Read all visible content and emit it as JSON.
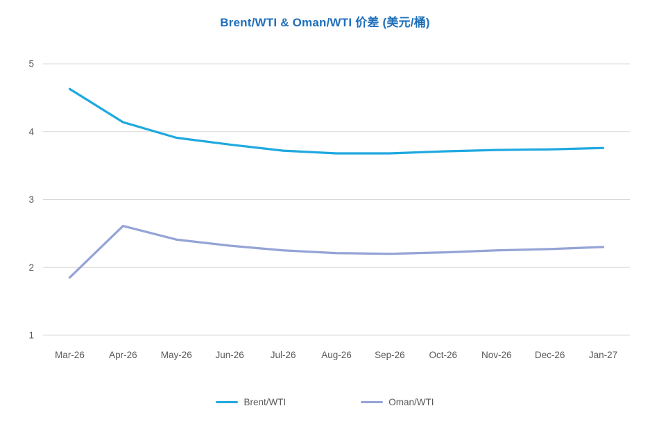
{
  "title": "Brent/WTI & Oman/WTI 价差 (美元/桶)",
  "colors": {
    "title": "#1E6FBA",
    "brent": "#1FA8E0",
    "oman": "#95A3D6",
    "grid": "#D9D9D9",
    "axis_text": "#595959"
  },
  "legend": {
    "items": [
      {
        "label": "Brent/WTI"
      },
      {
        "label": "Oman/WTI"
      }
    ]
  },
  "chart_data": {
    "type": "line",
    "title": "Brent/WTI & Oman/WTI 价差 (美元/桶)",
    "categories": [
      "Mar-26",
      "Apr-26",
      "May-26",
      "Jun-26",
      "Jul-26",
      "Aug-26",
      "Sep-26",
      "Oct-26",
      "Nov-26",
      "Dec-26",
      "Jan-27"
    ],
    "series": [
      {
        "name": "Brent/WTI",
        "color": "#1FA8E0",
        "values": [
          4.63,
          4.14,
          3.91,
          3.81,
          3.72,
          3.68,
          3.68,
          3.71,
          3.73,
          3.74,
          3.76
        ]
      },
      {
        "name": "Oman/WTI",
        "color": "#95A3D6",
        "values": [
          1.85,
          2.61,
          2.41,
          2.32,
          2.25,
          2.21,
          2.2,
          2.22,
          2.25,
          2.27,
          2.3
        ]
      }
    ],
    "xlabel": "",
    "ylabel": "",
    "ylim": [
      1,
      5
    ],
    "yticks": [
      1,
      2,
      3,
      4,
      5
    ],
    "grid": true,
    "legend_position": "bottom"
  }
}
